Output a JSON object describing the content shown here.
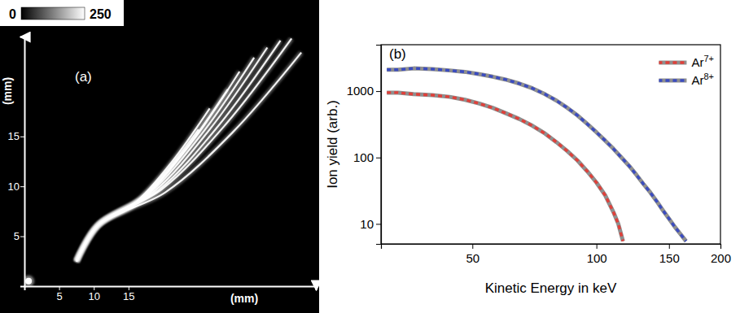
{
  "chart_data": [
    {
      "type": "line",
      "label": "(a)",
      "x_label": "(mm)",
      "y_label": "(mm)",
      "xlim": [
        0,
        42
      ],
      "ylim": [
        0,
        25
      ],
      "xticks": [
        5,
        10,
        15
      ],
      "yticks": [
        5,
        10,
        15
      ],
      "colorbar": {
        "range": [
          0,
          250
        ],
        "ticks": [
          0,
          250
        ]
      },
      "series": [
        {
          "color": "#ffffff",
          "x": [
            7.5,
            10.6,
            15.4,
            20.2,
            25.1
          ],
          "values": [
            2.5,
            6.1,
            7.9,
            11.3,
            15.7
          ]
        },
        {
          "color": "#ffffff",
          "x": [
            7.5,
            10.6,
            15.9,
            21.2,
            26.7
          ],
          "values": [
            2.5,
            6.1,
            8.3,
            12.4,
            17.8
          ]
        },
        {
          "color": "#ffffff",
          "x": [
            7.5,
            10.6,
            16.8,
            22.9,
            29.3
          ],
          "values": [
            2.5,
            6.1,
            8.7,
            13.4,
            19.7
          ]
        },
        {
          "color": "#ffffff",
          "x": [
            7.5,
            10.6,
            17.3,
            24.1,
            31.0
          ],
          "values": [
            2.5,
            6.1,
            9.0,
            14.4,
            21.5
          ]
        },
        {
          "color": "#ffffff",
          "x": [
            7.5,
            10.6,
            18.0,
            25.5,
            33.1
          ],
          "values": [
            2.5,
            6.1,
            9.3,
            15.2,
            22.9
          ]
        },
        {
          "color": "#ffffff",
          "x": [
            7.5,
            10.6,
            18.7,
            26.7,
            35.0
          ],
          "values": [
            2.5,
            6.1,
            9.5,
            15.7,
            23.9
          ]
        },
        {
          "color": "#ffffff",
          "x": [
            7.5,
            10.6,
            19.3,
            28.0,
            36.9
          ],
          "values": [
            2.5,
            6.1,
            9.6,
            16.1,
            24.6
          ]
        },
        {
          "color": "#ffffff",
          "x": [
            7.5,
            10.6,
            19.8,
            29.0,
            38.5
          ],
          "values": [
            2.5,
            6.1,
            9.7,
            16.2,
            24.8
          ]
        },
        {
          "color": "#ffffff",
          "x": [
            7.5,
            10.6,
            20.3,
            30.0,
            39.9
          ],
          "values": [
            2.5,
            6.1,
            9.4,
            15.4,
            23.4
          ]
        },
        {
          "type": "scatter",
          "marker": "circle",
          "color": "#ffffff",
          "x": [
            0.6
          ],
          "values": [
            0.5
          ]
        }
      ]
    },
    {
      "type": "line",
      "label": "(b)",
      "x_label": "Kinetic Energy in keV",
      "y_label": "Ion yield (arb.)",
      "log": true,
      "xlim": [
        30,
        200
      ],
      "ylim": [
        5,
        5000
      ],
      "xticks": [
        50,
        100,
        150,
        200
      ],
      "yticks": [
        10,
        100,
        1000
      ],
      "legend": "upper right",
      "series": [
        {
          "name": "Ar7+",
          "color": "#e0403a",
          "x": [
            31,
            33,
            36,
            40,
            44,
            48,
            52,
            56,
            60,
            65,
            70,
            75,
            80,
            85,
            90,
            95,
            100,
            105,
            110,
            113,
            116
          ],
          "values": [
            950,
            950,
            900,
            870,
            820,
            740,
            650,
            560,
            470,
            380,
            300,
            230,
            170,
            125,
            90,
            62,
            42,
            27,
            15,
            10,
            5.5
          ]
        },
        {
          "name": "Ar8+",
          "color": "#3b4cc0",
          "x": [
            31,
            33,
            36,
            40,
            44,
            48,
            52,
            56,
            60,
            65,
            70,
            75,
            80,
            85,
            90,
            95,
            100,
            105,
            110,
            115,
            120,
            125,
            130,
            135,
            140,
            145,
            150,
            155,
            160,
            165
          ],
          "values": [
            2100,
            2100,
            2200,
            2150,
            2050,
            1950,
            1800,
            1650,
            1500,
            1300,
            1100,
            900,
            720,
            560,
            430,
            320,
            240,
            180,
            135,
            100,
            75,
            55,
            40,
            30,
            22,
            16,
            12,
            9,
            7,
            5.5
          ]
        }
      ]
    }
  ]
}
